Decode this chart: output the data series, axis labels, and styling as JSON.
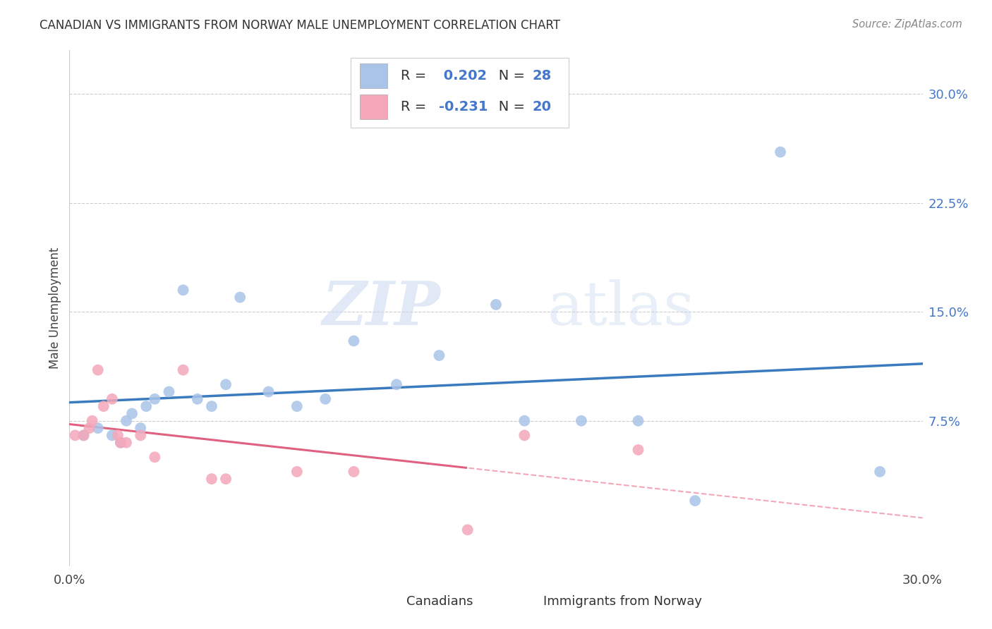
{
  "title": "CANADIAN VS IMMIGRANTS FROM NORWAY MALE UNEMPLOYMENT CORRELATION CHART",
  "source": "Source: ZipAtlas.com",
  "ylabel": "Male Unemployment",
  "xlim": [
    0.0,
    0.3
  ],
  "ylim": [
    -0.025,
    0.33
  ],
  "ytick_vals": [
    0.075,
    0.15,
    0.225,
    0.3
  ],
  "ytick_labels": [
    "7.5%",
    "15.0%",
    "22.5%",
    "30.0%"
  ],
  "xtick_vals": [
    0.0,
    0.05,
    0.1,
    0.15,
    0.2,
    0.25,
    0.3
  ],
  "xtick_labels": [
    "0.0%",
    "",
    "",
    "",
    "",
    "",
    "30.0%"
  ],
  "grid_color": "#cccccc",
  "background_color": "#ffffff",
  "canadian_color": "#aac4e8",
  "norwegian_color": "#f4a7b9",
  "canadian_line_color": "#3a7abf",
  "norwegian_line_color": "#e06080",
  "norwegian_dashed_color": "#f4a7b9",
  "R_canadian": 0.202,
  "N_canadian": 28,
  "R_norwegian": -0.231,
  "N_norwegian": 20,
  "legend_color": "#4477cc",
  "canadians_x": [
    0.005,
    0.01,
    0.015,
    0.018,
    0.02,
    0.022,
    0.025,
    0.027,
    0.03,
    0.035,
    0.04,
    0.045,
    0.05,
    0.055,
    0.06,
    0.07,
    0.08,
    0.09,
    0.1,
    0.115,
    0.13,
    0.15,
    0.16,
    0.18,
    0.2,
    0.22,
    0.25,
    0.285
  ],
  "canadians_y": [
    0.065,
    0.07,
    0.065,
    0.06,
    0.075,
    0.08,
    0.07,
    0.085,
    0.09,
    0.095,
    0.165,
    0.09,
    0.085,
    0.1,
    0.16,
    0.095,
    0.085,
    0.09,
    0.13,
    0.1,
    0.12,
    0.155,
    0.075,
    0.075,
    0.075,
    0.02,
    0.26,
    0.04
  ],
  "norwegians_x": [
    0.002,
    0.005,
    0.007,
    0.008,
    0.01,
    0.012,
    0.015,
    0.017,
    0.018,
    0.02,
    0.025,
    0.03,
    0.04,
    0.05,
    0.055,
    0.08,
    0.1,
    0.14,
    0.16,
    0.2
  ],
  "norwegians_y": [
    0.065,
    0.065,
    0.07,
    0.075,
    0.11,
    0.085,
    0.09,
    0.065,
    0.06,
    0.06,
    0.065,
    0.05,
    0.11,
    0.035,
    0.035,
    0.04,
    0.04,
    0.0,
    0.065,
    0.055
  ],
  "watermark_zip": "ZIP",
  "watermark_atlas": "atlas",
  "legend_label_canadian": "Canadians",
  "legend_label_norwegian": "Immigrants from Norway"
}
